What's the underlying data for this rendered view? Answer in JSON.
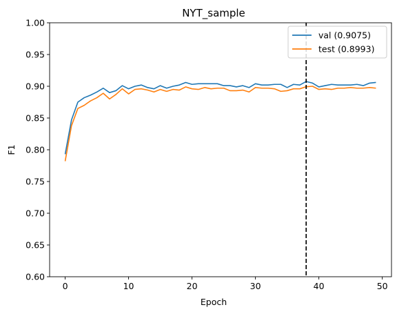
{
  "chart_data": {
    "type": "line",
    "title": "NYT_sample",
    "xlabel": "Epoch",
    "ylabel": "F1",
    "xlim": [
      -2.45,
      51.45
    ],
    "ylim": [
      0.6,
      1.0
    ],
    "xticks": [
      0,
      10,
      20,
      30,
      40,
      50
    ],
    "yticks": [
      0.6,
      0.65,
      0.7,
      0.75,
      0.8,
      0.85,
      0.9,
      0.95,
      1.0
    ],
    "xtick_labels": [
      "0",
      "10",
      "20",
      "30",
      "40",
      "50"
    ],
    "ytick_labels": [
      "0.60",
      "0.65",
      "0.70",
      "0.75",
      "0.80",
      "0.85",
      "0.90",
      "0.95",
      "1.00"
    ],
    "grid": false,
    "legend_position": "top-right",
    "x": [
      0,
      1,
      2,
      3,
      4,
      5,
      6,
      7,
      8,
      9,
      10,
      11,
      12,
      13,
      14,
      15,
      16,
      17,
      18,
      19,
      20,
      21,
      22,
      23,
      24,
      25,
      26,
      27,
      28,
      29,
      30,
      31,
      32,
      33,
      34,
      35,
      36,
      37,
      38,
      39,
      40,
      41,
      42,
      43,
      44,
      45,
      46,
      47,
      48,
      49
    ],
    "series": [
      {
        "name": "val (0.9075)",
        "color": "#1f77b4",
        "values": [
          0.793,
          0.847,
          0.875,
          0.882,
          0.886,
          0.891,
          0.897,
          0.89,
          0.893,
          0.901,
          0.896,
          0.9,
          0.902,
          0.898,
          0.896,
          0.901,
          0.897,
          0.9,
          0.902,
          0.906,
          0.903,
          0.904,
          0.904,
          0.904,
          0.904,
          0.901,
          0.901,
          0.899,
          0.901,
          0.898,
          0.904,
          0.902,
          0.902,
          0.903,
          0.903,
          0.898,
          0.903,
          0.902,
          0.9075,
          0.905,
          0.899,
          0.901,
          0.903,
          0.902,
          0.902,
          0.902,
          0.903,
          0.901,
          0.905,
          0.906
        ]
      },
      {
        "name": "test (0.8993)",
        "color": "#ff7f0e",
        "values": [
          0.782,
          0.838,
          0.865,
          0.87,
          0.877,
          0.882,
          0.889,
          0.88,
          0.887,
          0.896,
          0.888,
          0.895,
          0.896,
          0.894,
          0.891,
          0.895,
          0.892,
          0.895,
          0.894,
          0.899,
          0.896,
          0.895,
          0.898,
          0.896,
          0.897,
          0.897,
          0.893,
          0.893,
          0.894,
          0.891,
          0.898,
          0.897,
          0.897,
          0.896,
          0.892,
          0.893,
          0.896,
          0.896,
          0.8993,
          0.9,
          0.895,
          0.896,
          0.895,
          0.897,
          0.897,
          0.898,
          0.897,
          0.897,
          0.898,
          0.897
        ]
      }
    ],
    "annotations": [
      {
        "type": "vline",
        "x": 38,
        "style": "dashed",
        "color": "#000000"
      }
    ]
  }
}
